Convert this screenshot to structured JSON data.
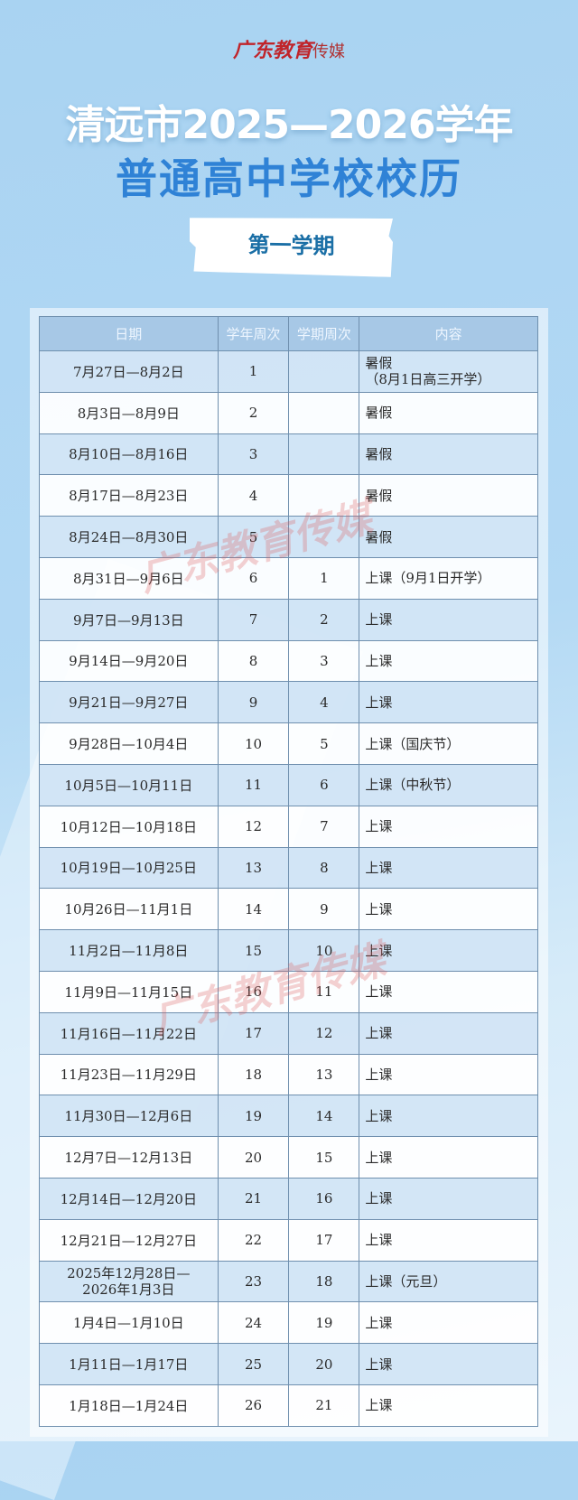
{
  "logo": {
    "text": "广东教育",
    "suffix": "传媒"
  },
  "title_line1": "清远市2025—2026学年",
  "title_line2": "普通高中学校校历",
  "semester": "第一学期",
  "watermark": "广东教育传媒",
  "table": {
    "headers": [
      "日期",
      "学年周次",
      "学期周次",
      "内容"
    ],
    "rows": [
      [
        "7月27日—8月2日",
        "1",
        "",
        "暑假\n（8月1日高三开学）"
      ],
      [
        "8月3日—8月9日",
        "2",
        "",
        "暑假"
      ],
      [
        "8月10日—8月16日",
        "3",
        "",
        "暑假"
      ],
      [
        "8月17日—8月23日",
        "4",
        "",
        "暑假"
      ],
      [
        "8月24日—8月30日",
        "5",
        "",
        "暑假"
      ],
      [
        "8月31日—9月6日",
        "6",
        "1",
        "上课（9月1日开学）"
      ],
      [
        "9月7日—9月13日",
        "7",
        "2",
        "上课"
      ],
      [
        "9月14日—9月20日",
        "8",
        "3",
        "上课"
      ],
      [
        "9月21日—9月27日",
        "9",
        "4",
        "上课"
      ],
      [
        "9月28日—10月4日",
        "10",
        "5",
        "上课（国庆节）"
      ],
      [
        "10月5日—10月11日",
        "11",
        "6",
        "上课（中秋节）"
      ],
      [
        "10月12日—10月18日",
        "12",
        "7",
        "上课"
      ],
      [
        "10月19日—10月25日",
        "13",
        "8",
        "上课"
      ],
      [
        "10月26日—11月1日",
        "14",
        "9",
        "上课"
      ],
      [
        "11月2日—11月8日",
        "15",
        "10",
        "上课"
      ],
      [
        "11月9日—11月15日",
        "16",
        "11",
        "上课"
      ],
      [
        "11月16日—11月22日",
        "17",
        "12",
        "上课"
      ],
      [
        "11月23日—11月29日",
        "18",
        "13",
        "上课"
      ],
      [
        "11月30日—12月6日",
        "19",
        "14",
        "上课"
      ],
      [
        "12月7日—12月13日",
        "20",
        "15",
        "上课"
      ],
      [
        "12月14日—12月20日",
        "21",
        "16",
        "上课"
      ],
      [
        "12月21日—12月27日",
        "22",
        "17",
        "上课"
      ],
      [
        "2025年12月28日—\n2026年1月3日",
        "23",
        "18",
        "上课（元旦）"
      ],
      [
        "1月4日—1月10日",
        "24",
        "19",
        "上课"
      ],
      [
        "1月11日—1月17日",
        "25",
        "20",
        "上课"
      ],
      [
        "1月18日—1月24日",
        "26",
        "21",
        "上课"
      ]
    ]
  }
}
